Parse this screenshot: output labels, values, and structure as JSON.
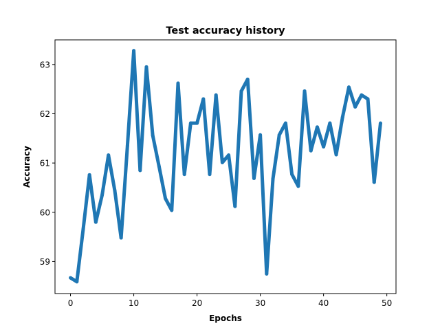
{
  "chart_data": {
    "type": "line",
    "title": "Test accuracy history",
    "xlabel": "Epochs",
    "ylabel": "Accuracy",
    "xlim": [
      -2.45,
      51.45
    ],
    "ylim": [
      58.35,
      63.5
    ],
    "xticks": [
      0,
      10,
      20,
      30,
      40,
      50
    ],
    "yticks": [
      59,
      60,
      61,
      62,
      63
    ],
    "grid": false,
    "series": [
      {
        "color": "#1f77b4",
        "x": [
          0,
          1,
          2,
          3,
          4,
          5,
          6,
          7,
          8,
          9,
          10,
          11,
          12,
          13,
          14,
          15,
          16,
          17,
          18,
          19,
          20,
          21,
          22,
          23,
          24,
          25,
          26,
          27,
          28,
          29,
          30,
          31,
          32,
          33,
          34,
          35,
          36,
          37,
          38,
          39,
          40,
          41,
          42,
          43,
          44,
          45,
          46,
          47,
          48,
          49
        ],
        "y": [
          58.67,
          58.59,
          59.65,
          60.76,
          59.8,
          60.35,
          61.16,
          60.44,
          59.48,
          61.35,
          63.28,
          60.85,
          62.95,
          61.56,
          60.93,
          60.28,
          60.04,
          62.62,
          60.77,
          61.81,
          61.81,
          62.3,
          60.77,
          62.38,
          61.01,
          61.16,
          60.12,
          62.46,
          62.7,
          60.69,
          61.57,
          58.75,
          60.68,
          61.57,
          61.81,
          60.77,
          60.53,
          62.46,
          61.25,
          61.73,
          61.33,
          61.81,
          61.17,
          61.93,
          62.54,
          62.14,
          62.38,
          62.3,
          60.61,
          61.81
        ]
      }
    ]
  }
}
